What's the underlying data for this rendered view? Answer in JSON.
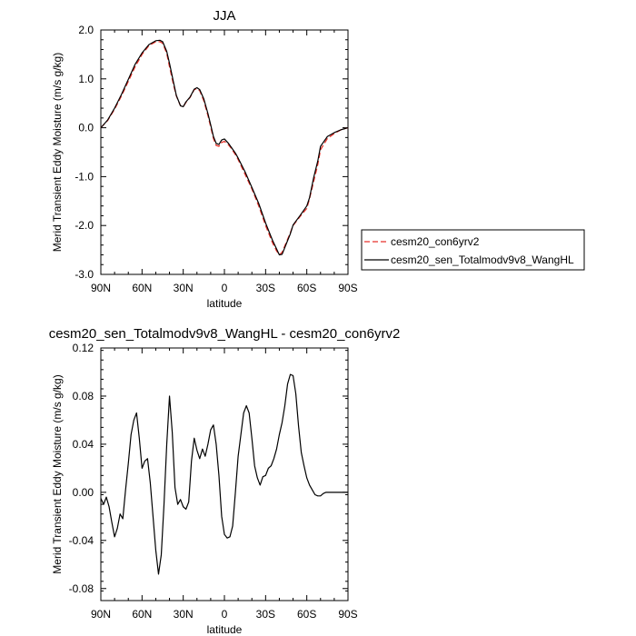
{
  "chart_data": [
    {
      "type": "line",
      "title": "JJA",
      "xlabel": "latitude",
      "ylabel": "Merid Transient Eddy Moisture (m/s g/kg)",
      "xlim": [
        90,
        -90
      ],
      "ylim": [
        -3.0,
        2.0
      ],
      "x_ticks": [
        90,
        60,
        30,
        0,
        -30,
        -60,
        -90
      ],
      "x_tick_labels": [
        "90N",
        "60N",
        "30N",
        "0",
        "30S",
        "60S",
        "90S"
      ],
      "y_ticks": [
        -3.0,
        -2.0,
        -1.0,
        0.0,
        1.0,
        2.0
      ],
      "y_tick_labels": [
        "-3.0",
        "-2.0",
        "-1.0",
        "0.0",
        "1.0",
        "2.0"
      ],
      "legend_position": "right",
      "series": [
        {
          "name": "cesm20_con6yrv2",
          "color": "#e8322a",
          "dash": true,
          "x": [
            90,
            85,
            80,
            75,
            70,
            65,
            60,
            55,
            50,
            47,
            45,
            42,
            40,
            37,
            35,
            32,
            30,
            28,
            25,
            22,
            20,
            18,
            15,
            12,
            10,
            8,
            6,
            4,
            2,
            0,
            -3,
            -5,
            -8,
            -10,
            -15,
            -20,
            -25,
            -30,
            -35,
            -38,
            -40,
            -42,
            -45,
            -48,
            -50,
            -55,
            -60,
            -62,
            -65,
            -68,
            -70,
            -75,
            -80,
            -85,
            -90
          ],
          "values": [
            0.0,
            0.15,
            0.38,
            0.65,
            0.95,
            1.25,
            1.5,
            1.68,
            1.76,
            1.76,
            1.73,
            1.52,
            1.25,
            0.87,
            0.65,
            0.45,
            0.43,
            0.52,
            0.62,
            0.78,
            0.8,
            0.76,
            0.55,
            0.25,
            0.02,
            -0.22,
            -0.36,
            -0.38,
            -0.3,
            -0.28,
            -0.35,
            -0.42,
            -0.55,
            -0.65,
            -0.95,
            -1.25,
            -1.6,
            -2.0,
            -2.35,
            -2.52,
            -2.6,
            -2.55,
            -2.35,
            -2.15,
            -2.0,
            -1.82,
            -1.65,
            -1.45,
            -1.1,
            -0.75,
            -0.45,
            -0.22,
            -0.12,
            -0.04,
            0.0
          ]
        },
        {
          "name": "cesm20_sen_Totalmodv9v8_WangHL",
          "color": "#000000",
          "dash": false,
          "x": [
            90,
            85,
            80,
            75,
            70,
            65,
            60,
            55,
            50,
            47,
            45,
            42,
            40,
            37,
            35,
            32,
            30,
            28,
            25,
            22,
            20,
            18,
            15,
            12,
            10,
            8,
            6,
            4,
            2,
            0,
            -3,
            -5,
            -8,
            -10,
            -15,
            -20,
            -25,
            -30,
            -35,
            -38,
            -40,
            -42,
            -45,
            -48,
            -50,
            -55,
            -60,
            -62,
            -65,
            -68,
            -70,
            -75,
            -80,
            -85,
            -90
          ],
          "values": [
            0.0,
            0.16,
            0.4,
            0.68,
            0.99,
            1.3,
            1.53,
            1.7,
            1.78,
            1.79,
            1.76,
            1.56,
            1.32,
            0.92,
            0.66,
            0.45,
            0.43,
            0.53,
            0.63,
            0.79,
            0.82,
            0.78,
            0.59,
            0.29,
            0.06,
            -0.18,
            -0.32,
            -0.34,
            -0.25,
            -0.23,
            -0.32,
            -0.4,
            -0.52,
            -0.62,
            -0.9,
            -1.22,
            -1.55,
            -1.95,
            -2.3,
            -2.48,
            -2.6,
            -2.59,
            -2.38,
            -2.17,
            -1.99,
            -1.8,
            -1.6,
            -1.43,
            -1.02,
            -0.68,
            -0.38,
            -0.18,
            -0.1,
            -0.04,
            0.0
          ]
        }
      ]
    },
    {
      "type": "line",
      "title": "cesm20_sen_Totalmodv9v8_WangHL - cesm20_con6yrv2",
      "xlabel": "latitude",
      "ylabel": "Merid Transient Eddy Moisture (m/s g/kg)",
      "xlim": [
        90,
        -90
      ],
      "ylim": [
        -0.09,
        0.12
      ],
      "x_ticks": [
        90,
        60,
        30,
        0,
        -30,
        -60,
        -90
      ],
      "x_tick_labels": [
        "90N",
        "60N",
        "30N",
        "0",
        "30S",
        "60S",
        "90S"
      ],
      "y_ticks": [
        -0.08,
        -0.04,
        0.0,
        0.04,
        0.08,
        0.12
      ],
      "y_tick_labels": [
        "-0.08",
        "-0.04",
        "0.00",
        "0.04",
        "0.08",
        "0.12"
      ],
      "series": [
        {
          "name": "",
          "color": "#000000",
          "dash": false,
          "x": [
            90,
            88,
            86,
            84,
            82,
            80,
            78,
            76,
            74,
            72,
            70,
            68,
            66,
            64,
            62,
            60,
            58,
            56,
            54,
            52,
            50,
            48,
            46,
            44,
            42,
            40,
            38,
            36,
            34,
            32,
            30,
            28,
            26,
            24,
            22,
            20,
            18,
            16,
            14,
            12,
            10,
            8,
            6,
            4,
            2,
            0,
            -2,
            -4,
            -6,
            -8,
            -10,
            -12,
            -14,
            -16,
            -18,
            -20,
            -22,
            -24,
            -26,
            -28,
            -30,
            -32,
            -34,
            -36,
            -38,
            -40,
            -42,
            -44,
            -46,
            -48,
            -50,
            -52,
            -54,
            -56,
            -58,
            -60,
            -62,
            -64,
            -66,
            -68,
            -70,
            -72,
            -74,
            -76,
            -78,
            -80,
            -82,
            -84,
            -86,
            -88,
            -90
          ],
          "values": [
            -0.005,
            -0.01,
            -0.004,
            -0.012,
            -0.025,
            -0.037,
            -0.03,
            -0.018,
            -0.022,
            0.002,
            0.024,
            0.048,
            0.06,
            0.066,
            0.045,
            0.02,
            0.026,
            0.028,
            0.008,
            -0.02,
            -0.048,
            -0.068,
            -0.052,
            -0.01,
            0.04,
            0.08,
            0.05,
            0.004,
            -0.01,
            -0.006,
            -0.012,
            -0.014,
            -0.008,
            0.026,
            0.045,
            0.035,
            0.028,
            0.036,
            0.03,
            0.04,
            0.052,
            0.056,
            0.04,
            0.014,
            -0.02,
            -0.035,
            -0.038,
            -0.037,
            -0.028,
            0.0,
            0.03,
            0.048,
            0.066,
            0.072,
            0.066,
            0.045,
            0.022,
            0.012,
            0.006,
            0.013,
            0.014,
            0.02,
            0.022,
            0.028,
            0.036,
            0.048,
            0.058,
            0.072,
            0.09,
            0.098,
            0.097,
            0.082,
            0.055,
            0.033,
            0.022,
            0.012,
            0.006,
            0.002,
            -0.002,
            -0.003,
            -0.003,
            -0.001,
            0.0,
            0.0,
            0.0,
            0.0,
            0.0,
            0.0,
            0.0,
            0.0,
            0.0
          ]
        }
      ]
    }
  ]
}
